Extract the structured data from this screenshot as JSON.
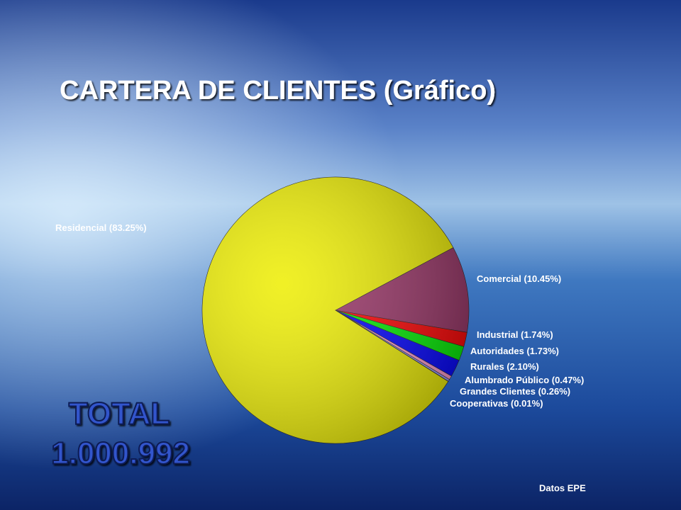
{
  "chart_data": {
    "type": "pie",
    "title": "CARTERA DE CLIENTES (Gráfico)",
    "categories": [
      "Residencial",
      "Comercial",
      "Industrial",
      "Autoridades",
      "Rurales",
      "Alumbrado Público",
      "Grandes Clientes",
      "Cooperativas"
    ],
    "values": [
      83.25,
      10.45,
      1.74,
      1.73,
      2.1,
      0.47,
      0.26,
      0.01
    ],
    "value_labels": [
      "(83.25%)",
      "(10.45%)",
      "(1.74%)",
      "(1.73%)",
      "(2.10%)",
      "(0.47%)",
      "(0.26%)",
      "(0.01%)"
    ],
    "colors": [
      "#eeee00",
      "#993366",
      "#ff0000",
      "#00ee00",
      "#0000ff",
      "#ff99cc",
      "#9999ff",
      "#333366"
    ]
  },
  "total": {
    "label": "TOTAL",
    "value": "1.000.992"
  },
  "source": "Datos EPE"
}
